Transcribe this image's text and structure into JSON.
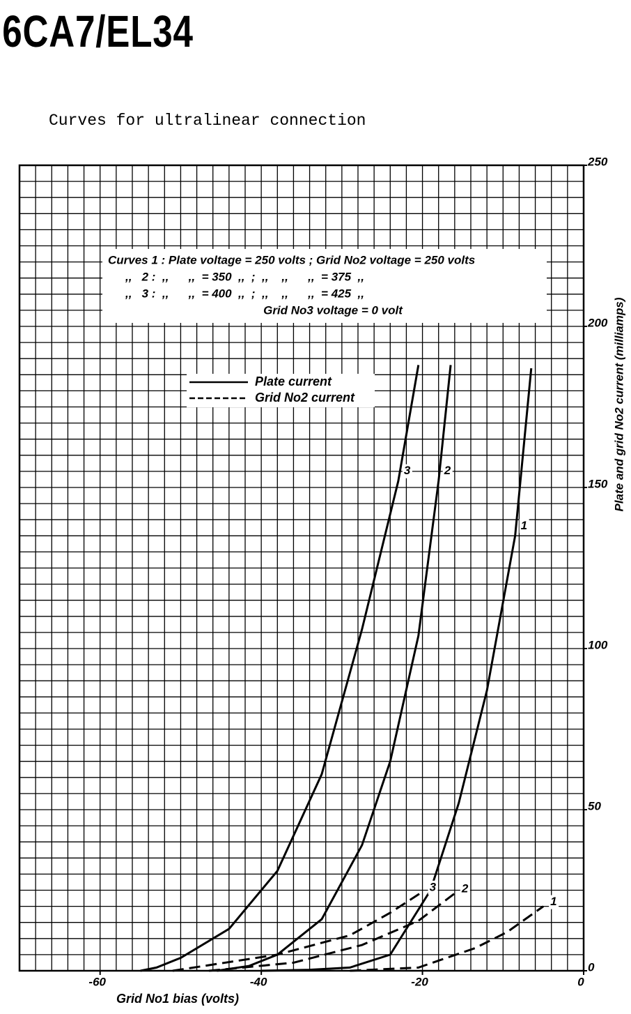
{
  "chart_data": {
    "type": "line",
    "title": "6CA7/EL34",
    "subtitle": "Curves for ultralinear connection",
    "x_label": "Grid No1 bias (volts)",
    "y_label": "Plate and grid No2 current (milliamps)",
    "info": [
      "Curves 1 : Plate voltage = 250 volts ; Grid No2 voltage = 250 volts",
      ",,   2 :  ,,      ,,  = 350  ,,  ;  ,,    ,,      ,,  = 375  ,,",
      ",,   3 :  ,,      ,,  = 400  ,,  ;  ,,    ,,      ,,  = 425  ,,",
      "Grid No3 voltage = 0 volt"
    ],
    "legend": [
      {
        "name": "Plate current",
        "dashed": false
      },
      {
        "name": "Grid No2 current",
        "dashed": true
      }
    ],
    "xlim": [
      -70,
      0
    ],
    "ylim": [
      0,
      250
    ],
    "xticks": [
      -60,
      -40,
      -20,
      0
    ],
    "yticks": [
      0,
      50,
      100,
      150,
      200,
      250
    ],
    "grid": true,
    "color": "#000000",
    "series": [
      {
        "label": "1",
        "dashed": false,
        "x": [
          -40,
          -34,
          -29,
          -24,
          -19,
          -15.5,
          -12,
          -8.5,
          -6.5
        ],
        "values": [
          0,
          0.3,
          1,
          5,
          25,
          52,
          87,
          135,
          187
        ]
      },
      {
        "label": "2",
        "dashed": false,
        "x": [
          -45.5,
          -41.5,
          -38,
          -32.5,
          -27.5,
          -24,
          -20.5,
          -18,
          -16.5
        ],
        "values": [
          0,
          1.5,
          5,
          16,
          39,
          65,
          104,
          152,
          188
        ]
      },
      {
        "label": "3",
        "dashed": false,
        "x": [
          -55,
          -53,
          -50,
          -44,
          -38,
          -32.5,
          -27.5,
          -23,
          -20.5
        ],
        "values": [
          0,
          1,
          4,
          13,
          31,
          61,
          106,
          152,
          188
        ]
      },
      {
        "label": "1",
        "dashed": true,
        "x": [
          -29,
          -20.5,
          -13.5,
          -9.5,
          -5
        ],
        "values": [
          0,
          1,
          7,
          12,
          20
        ]
      },
      {
        "label": "2",
        "dashed": true,
        "x": [
          -46.5,
          -36,
          -27.5,
          -20.5,
          -16
        ],
        "values": [
          0,
          2.5,
          8,
          15.5,
          24
        ]
      },
      {
        "label": "3",
        "dashed": true,
        "x": [
          -51,
          -38,
          -29,
          -24,
          -20
        ],
        "values": [
          0,
          5,
          11,
          18,
          24.5
        ]
      }
    ]
  }
}
